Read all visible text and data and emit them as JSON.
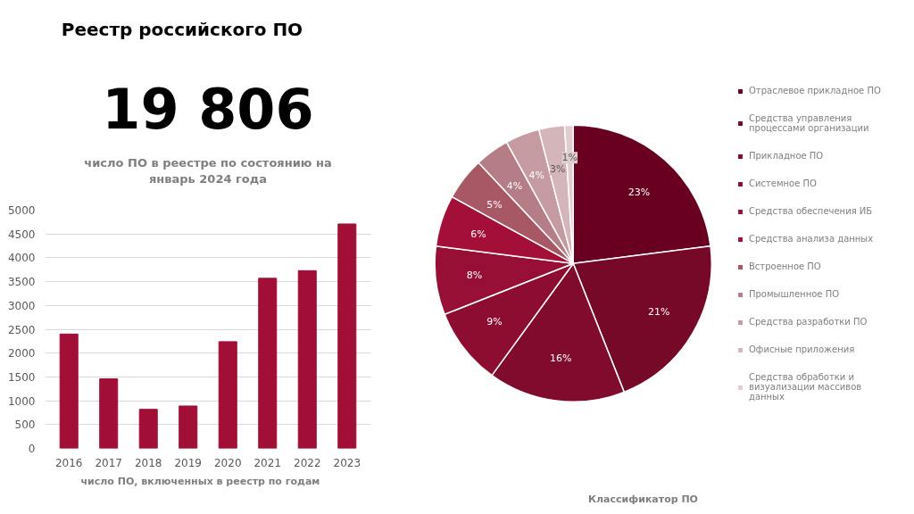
{
  "chart_data": [
    {
      "type": "other",
      "title": "Реестр российского ПО",
      "annotations": [
        "19 806",
        "число ПО в реестре по состоянию на январь 2024 года"
      ]
    },
    {
      "type": "bar",
      "title": "число ПО, включенных в реестр по годам",
      "categories": [
        "2016",
        "2017",
        "2018",
        "2019",
        "2020",
        "2021",
        "2022",
        "2023"
      ],
      "values": [
        2400,
        1460,
        820,
        890,
        2240,
        3570,
        3730,
        4710
      ],
      "color": "#a10e36",
      "ylim": [
        0,
        5000
      ],
      "yticks": [
        0,
        500,
        1000,
        1500,
        2000,
        2500,
        3000,
        3500,
        4000,
        4500,
        5000
      ],
      "grid": "y"
    },
    {
      "type": "pie",
      "title": "Классификатор ПО",
      "categories": [
        "Отраслевое прикладное ПО",
        "Средства управления процессами организации",
        "Прикладное ПО",
        "Системное ПО",
        "Средства обеспечения ИБ",
        "Средства анализа данных",
        "Встроенное ПО",
        "Промышленное ПО",
        "Средства разработки ПО",
        "Офисные приложения",
        "Средства обработки и визуализации массивов данных"
      ],
      "values": [
        23,
        21,
        16,
        9,
        8,
        6,
        5,
        4,
        4,
        3,
        1
      ],
      "colors": [
        "#690021",
        "#760828",
        "#810b2c",
        "#8c0d30",
        "#970f34",
        "#a30f36",
        "#a85864",
        "#b57d85",
        "#c59aa0",
        "#d4b5b9",
        "#e0cdd0"
      ],
      "value_labels": [
        "23%",
        "21%",
        "16%",
        "9%",
        "8%",
        "6%",
        "5%",
        "4%",
        "4%",
        "3%",
        "1%"
      ],
      "legend": "right"
    }
  ]
}
